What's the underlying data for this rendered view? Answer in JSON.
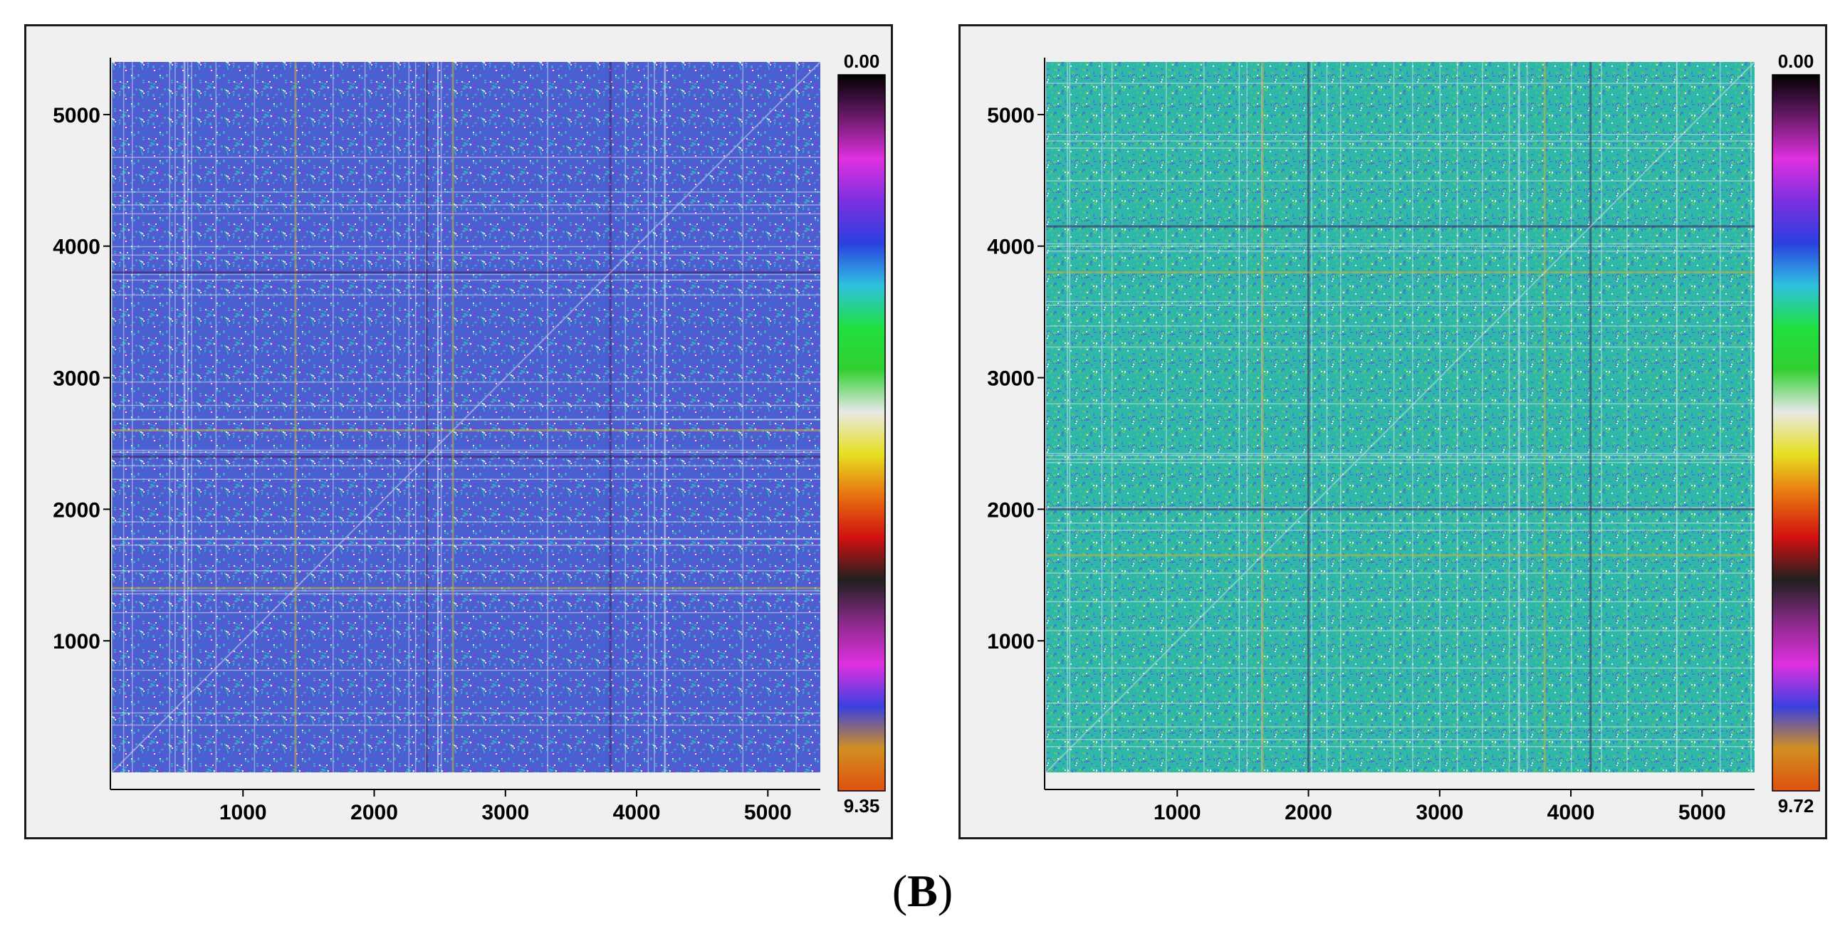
{
  "caption": {
    "open": "(",
    "letter": "B",
    "close": ")"
  },
  "chart_data": [
    {
      "type": "heatmap",
      "title": "",
      "xlabel": "",
      "ylabel": "",
      "xlim": [
        0,
        5400
      ],
      "ylim": [
        0,
        5400
      ],
      "x_ticks": [
        1000,
        2000,
        3000,
        4000,
        5000
      ],
      "y_ticks": [
        1000,
        2000,
        3000,
        4000,
        5000
      ],
      "x_tick_labels": [
        "1000",
        "2000",
        "3000",
        "4000",
        "5000"
      ],
      "y_tick_labels": [
        "1000",
        "2000",
        "3000",
        "4000",
        "5000"
      ],
      "colorbar": {
        "min_label": "0.00",
        "max_label": "9.35",
        "min": 0.0,
        "max": 9.35
      },
      "dominant_colors": [
        "#4a5fd0",
        "#3fa0c8",
        "#7c3fd8"
      ],
      "highlight_lines": [
        1400,
        2400,
        2600,
        3800
      ],
      "seed": 7
    },
    {
      "type": "heatmap",
      "title": "",
      "xlabel": "",
      "ylabel": "",
      "xlim": [
        0,
        5400
      ],
      "ylim": [
        0,
        5400
      ],
      "x_ticks": [
        1000,
        2000,
        3000,
        4000,
        5000
      ],
      "y_ticks": [
        1000,
        2000,
        3000,
        4000,
        5000
      ],
      "x_tick_labels": [
        "1000",
        "2000",
        "3000",
        "4000",
        "5000"
      ],
      "y_tick_labels": [
        "1000",
        "2000",
        "3000",
        "4000",
        "5000"
      ],
      "colorbar": {
        "min_label": "0.00",
        "max_label": "9.72",
        "min": 0.0,
        "max": 9.72
      },
      "dominant_colors": [
        "#2fb8a8",
        "#4fc878",
        "#3f80d0"
      ],
      "highlight_lines": [
        1650,
        2000,
        3800,
        4150
      ],
      "seed": 13
    }
  ],
  "colormap": [
    "#000000",
    "#6a1a6a",
    "#e030e0",
    "#7a30e0",
    "#2a40e0",
    "#30c0e0",
    "#20e040",
    "#30d030",
    "#e8e8e8",
    "#e8e020",
    "#e87010",
    "#d01010",
    "#202020",
    "#8a2a8a",
    "#e030e0",
    "#3a40e0",
    "#d09020",
    "#e05010"
  ]
}
